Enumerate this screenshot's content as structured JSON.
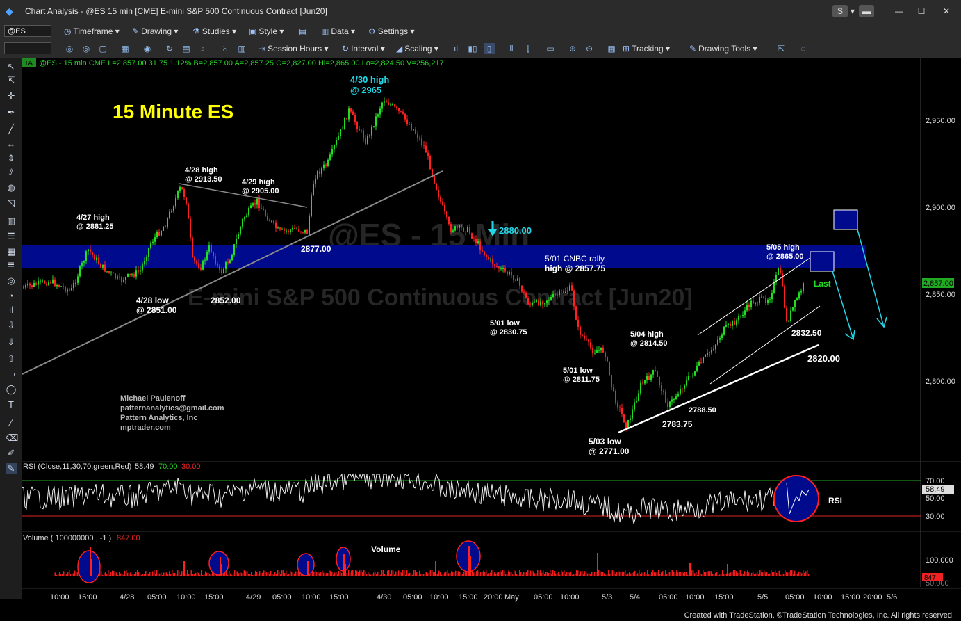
{
  "window": {
    "title": "Chart Analysis - @ES 15 min [CME] E-mini S&P 500 Continuous Contract [Jun20]",
    "buttons": {
      "s": "S",
      "link": "▾",
      "minimize": "—",
      "maximize": "☐",
      "close": "✕"
    }
  },
  "toolbar1": {
    "symbol": "@ES",
    "items": [
      "Timeframe",
      "Drawing",
      "Studies",
      "Style",
      "Data",
      "Settings"
    ]
  },
  "toolbar2": {
    "items": [
      "Session Hours",
      "Interval",
      "Scaling",
      "Tracking",
      "Drawing Tools"
    ]
  },
  "chart": {
    "info_badge": "TA",
    "info_line": "@ES - 15 min  CME  L=2,857.00  31.75  1.12%  B=2,857.00  A=2,857.25  O=2,827.00  Hi=2,865.00  Lo=2,824.50  V=256,217",
    "watermark_symbol": "@ES - 15 Min",
    "watermark_name": "E-mini S&P 500 Continuous Contract [Jun20]",
    "chart_title": "15 Minute ES",
    "price_axis": [
      "2,950.00",
      "2,900.00",
      "2,850.00",
      "2,800.00"
    ],
    "last_price": "2,857.00",
    "last_label": "Last",
    "time_axis": [
      "10:00",
      "15:00",
      "4/28",
      "05:00",
      "10:00",
      "15:00",
      "4/29",
      "05:00",
      "10:00",
      "15:00",
      "4/30",
      "05:00",
      "10:00",
      "15:00",
      "20:00",
      "May",
      "05:00",
      "10:00",
      "5/3",
      "5/4",
      "05:00",
      "10:00",
      "15:00",
      "5/5",
      "05:00",
      "10:00",
      "15:00",
      "20:00",
      "5/6"
    ],
    "annotations": {
      "a427": [
        "4/27 high",
        "@ 2881.25"
      ],
      "a428h": [
        "4/28 high",
        "@ 2913.50"
      ],
      "a429h": [
        "4/29 high",
        "@ 2905.00"
      ],
      "a430h": [
        "4/30 high",
        "@ 2965"
      ],
      "a428l": [
        "4/28 low",
        "@ 2851.00"
      ],
      "a2852": "2852.00",
      "a2877": "2877.00",
      "a2880": "2880.00",
      "acnbc": [
        "5/01 CNBC rally",
        "high @ 2857.75"
      ],
      "a501l1": [
        "5/01 low",
        "@ 2830.75"
      ],
      "a501l2": [
        "5/01 low",
        "@ 2811.75"
      ],
      "a503l": [
        "5/03 low",
        "@ 2771.00"
      ],
      "a504h": [
        "5/04 high",
        "@ 2814.50"
      ],
      "a2783": "2783.75",
      "a2788": "2788.50",
      "a505h": [
        "5/05 high",
        "@ 2865.00"
      ],
      "a2832": "2832.50",
      "a2820": "2820.00"
    },
    "author": [
      "Michael Paulenoff",
      "patternanalytics@gmail.com",
      "Pattern Analytics, Inc",
      "mptrader.com"
    ],
    "colors": {
      "up": "#22dd22",
      "down": "#ff2020",
      "band": "#000a8c",
      "cyan": "#22d8e8",
      "yellow": "#ffff00"
    }
  },
  "rsi": {
    "label": "RSI (Close,11,30,70,green,Red)",
    "value": "58.49",
    "level_high": "70.00",
    "level_low": "30.00",
    "axis": [
      "70.00",
      "50.00",
      "30.00"
    ],
    "tag": "RSI"
  },
  "volume": {
    "label": "Volume ( 100000000 , -1 )",
    "value": "847.00",
    "title": "Volume",
    "axis": [
      "100,000",
      "50,000"
    ],
    "tag": "847"
  },
  "footer": "Created with TradeStation. ©TradeStation Technologies, Inc. All rights reserved."
}
